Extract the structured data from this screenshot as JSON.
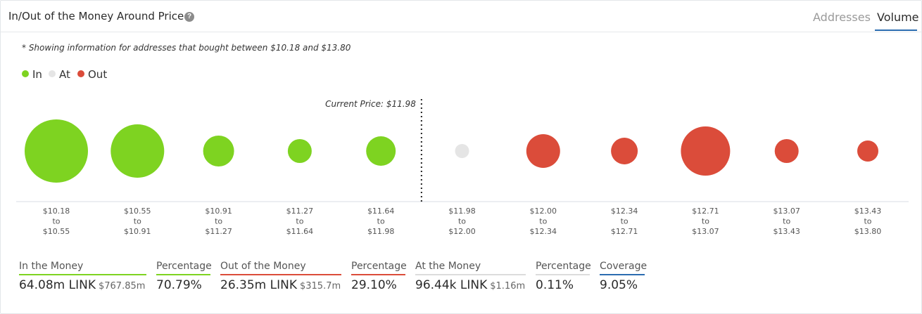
{
  "header": {
    "title": "In/Out of the Money Around Price",
    "help_icon": "question-circle-icon",
    "tabs": [
      {
        "label": "Addresses",
        "active": false
      },
      {
        "label": "Volume",
        "active": true
      }
    ]
  },
  "note": "* Showing information for addresses that bought between $10.18 and $13.80",
  "legend": [
    {
      "label": "In",
      "color": "#7ed321"
    },
    {
      "label": "At",
      "color": "#e5e5e5"
    },
    {
      "label": "Out",
      "color": "#db4c3a"
    }
  ],
  "chart_data": {
    "type": "scatter",
    "current_price_label": "Current Price: $11.98",
    "current_price": 11.98,
    "colors": {
      "in": "#7ed321",
      "at": "#e5e5e5",
      "out": "#db4c3a"
    },
    "categories": [
      {
        "from": "$10.18",
        "to": "$10.55",
        "status": "in",
        "size": 45
      },
      {
        "from": "$10.55",
        "to": "$10.91",
        "status": "in",
        "size": 38
      },
      {
        "from": "$10.91",
        "to": "$11.27",
        "status": "in",
        "size": 22
      },
      {
        "from": "$11.27",
        "to": "$11.64",
        "status": "in",
        "size": 17
      },
      {
        "from": "$11.64",
        "to": "$11.98",
        "status": "in",
        "size": 21
      },
      {
        "from": "$11.98",
        "to": "$12.00",
        "status": "at",
        "size": 10
      },
      {
        "from": "$12.00",
        "to": "$12.34",
        "status": "out",
        "size": 24
      },
      {
        "from": "$12.34",
        "to": "$12.71",
        "status": "out",
        "size": 19
      },
      {
        "from": "$12.71",
        "to": "$13.07",
        "status": "out",
        "size": 35
      },
      {
        "from": "$13.07",
        "to": "$13.43",
        "status": "out",
        "size": 17
      },
      {
        "from": "$13.43",
        "to": "$13.80",
        "status": "out",
        "size": 15
      }
    ],
    "to_word": "to"
  },
  "stats": [
    {
      "label": "In the Money",
      "value": "64.08m LINK",
      "sub": "$767.85m",
      "color": "#7ed321"
    },
    {
      "label": "Percentage",
      "value": "70.79%",
      "sub": "",
      "color": "#7ed321"
    },
    {
      "label": "Out of the Money",
      "value": "26.35m LINK",
      "sub": "$315.7m",
      "color": "#db4c3a"
    },
    {
      "label": "Percentage",
      "value": "29.10%",
      "sub": "",
      "color": "#db4c3a"
    },
    {
      "label": "At the Money",
      "value": "96.44k LINK",
      "sub": "$1.16m",
      "color": "#dcdcdc"
    },
    {
      "label": "Percentage",
      "value": "0.11%",
      "sub": "",
      "color": "#dcdcdc"
    },
    {
      "label": "Coverage",
      "value": "9.05%",
      "sub": "",
      "color": "#2b6cb0"
    }
  ]
}
